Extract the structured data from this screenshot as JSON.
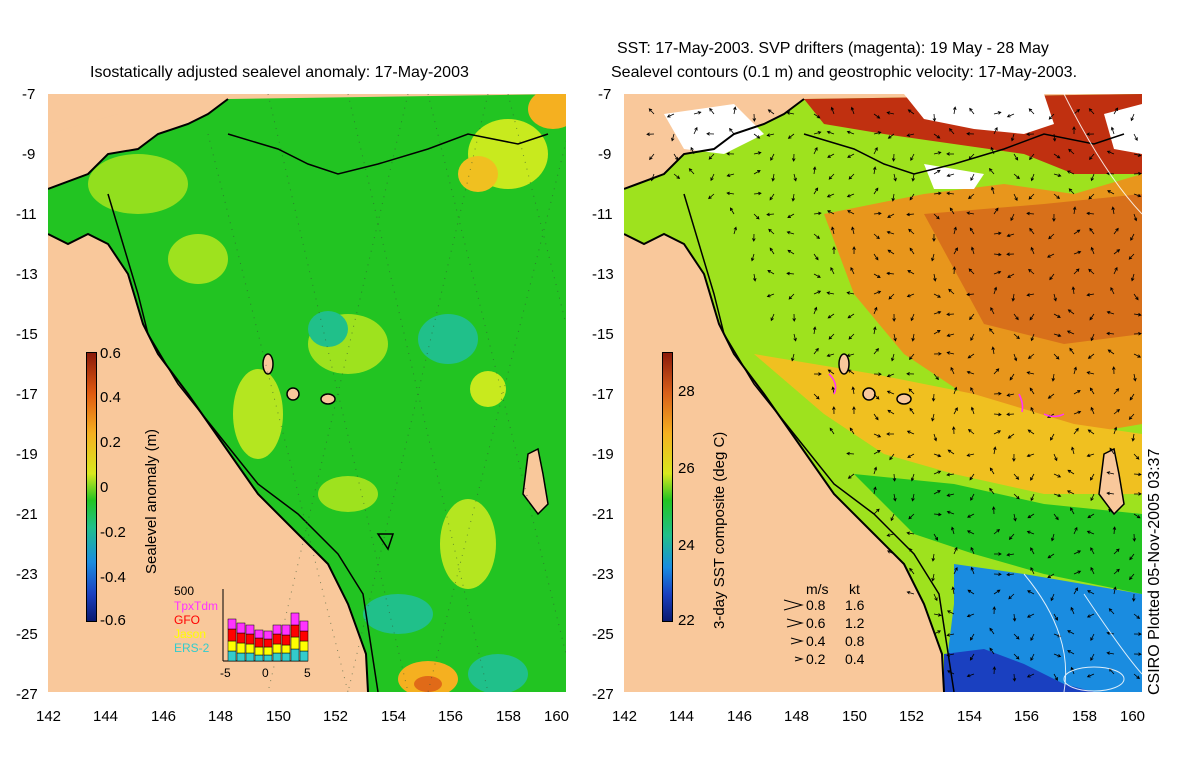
{
  "left_panel": {
    "title": "Isostatically adjusted sealevel anomaly: 17-May-2003",
    "colorbar": {
      "label": "Sealevel anomaly (m)",
      "ticks": [
        "0.6",
        "0.4",
        "0.2",
        "0",
        "-0.2",
        "-0.4",
        "-0.6"
      ]
    },
    "histogram": {
      "ymax_label": "500",
      "legend": [
        "TpxTdm",
        "GFO",
        "Jason",
        "ERS-2"
      ],
      "legend_colors": [
        "#ff33ff",
        "#ff0000",
        "#ffff00",
        "#33cccc"
      ],
      "xticks": [
        "-5",
        "0",
        "5"
      ]
    }
  },
  "right_panel": {
    "title_line1": "SST: 17-May-2003. SVP drifters (magenta): 19 May - 28 May",
    "title_line2": "Sealevel contours (0.1 m) and geostrophic velocity: 17-May-2003.",
    "colorbar": {
      "label": "3-day SST composite (deg C)",
      "ticks": [
        "28",
        "26",
        "24",
        "22"
      ]
    },
    "velocity_legend": {
      "header_ms": "m/s",
      "header_kt": "kt",
      "rows": [
        {
          "ms": "0.8",
          "kt": "1.6"
        },
        {
          "ms": "0.6",
          "kt": "1.2"
        },
        {
          "ms": "0.4",
          "kt": "0.8"
        },
        {
          "ms": "0.2",
          "kt": "0.4"
        }
      ]
    }
  },
  "axes": {
    "lat_ticks": [
      "-7",
      "-9",
      "-11",
      "-13",
      "-15",
      "-17",
      "-19",
      "-21",
      "-23",
      "-25",
      "-27"
    ],
    "lon_ticks": [
      "142",
      "144",
      "146",
      "148",
      "150",
      "152",
      "154",
      "156",
      "158",
      "160"
    ]
  },
  "credit": "CSIRO Plotted 05-Nov-2005 03:37",
  "colors": {
    "land": "#f9c89b",
    "sla_green": "#22c422",
    "sla_yellow": "#c8ea1e",
    "sla_cyan": "#20c08a",
    "sst_orange": "#e07a18",
    "sst_blue": "#1a8ce0"
  }
}
